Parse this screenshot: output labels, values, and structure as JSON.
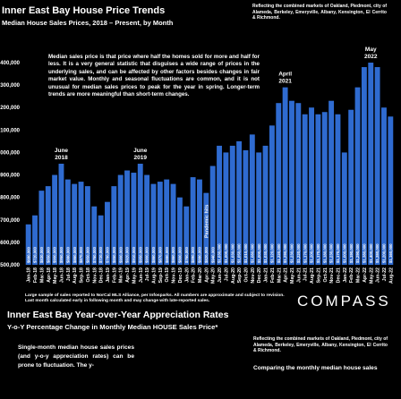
{
  "chart_data": {
    "type": "bar",
    "title": "Inner East Bay House Price Trends",
    "subtitle": "Median House Sales Prices, 2018 – Present, by Month",
    "note": "Reflecting the combined markets of Oakland, Piedmont, city of Alameda, Berkeley, Emeryville, Albany, Kensington, El Cerrito & Richmond.",
    "description": "Median sales price is that price where half the homes sold for more and half for less. It is a very general statistic that disguises a wide range of prices in the underlying sales, and can be affected by other factors besides changes in fair market value. Monthly and seasonal fluctuations are common, and it is not unusual for median sales prices to peak for the year in spring. Longer-term trends are more meaningful than short-term changes.",
    "footnote": "Large sample of sales reported to NorCal MLS Alliance, per Infosparks. All numbers are approximate and subject to revision. Last month calculated early in following month and may change with late-reported sales.",
    "logo": "COMPASS",
    "color": "#2f6bd0",
    "categories": [
      "Jan-18",
      "Feb-18",
      "Mar-18",
      "Apr-18",
      "May-18",
      "Jun-18",
      "Jul-18",
      "Aug-18",
      "Sep-18",
      "Oct-18",
      "Nov-18",
      "Dec-18",
      "Jan-19",
      "Feb-19",
      "Mar-19",
      "Apr-19",
      "May-19",
      "Jun-19",
      "Jul-19",
      "Aug-19",
      "Sep-19",
      "Oct-19",
      "Nov-19",
      "Dec-19",
      "Jan-20",
      "Feb-20",
      "Mar-20",
      "Apr-20",
      "May-20",
      "Jun-20",
      "Jul-20",
      "Aug-20",
      "Sep-20",
      "Oct-20",
      "Nov-20",
      "Dec-20",
      "Jan-21",
      "Feb-21",
      "Mar-21",
      "Apr-21",
      "May-21",
      "Jun-21",
      "Jul-21",
      "Aug-21",
      "Sep-21",
      "Oct-21",
      "Nov-21",
      "Dec-21",
      "Jan-22",
      "Feb-22",
      "Mar-22",
      "Apr-22",
      "May-22",
      "Jun-22",
      "Jul-22",
      "Aug-22"
    ],
    "values": [
      680000,
      720000,
      830000,
      850000,
      900000,
      950000,
      880000,
      860000,
      870000,
      850000,
      760000,
      720000,
      780000,
      850000,
      900000,
      920000,
      910000,
      950000,
      900000,
      860000,
      870000,
      880000,
      860000,
      800000,
      760000,
      890000,
      880000,
      820000,
      940000,
      1030000,
      1000000,
      1030000,
      1050000,
      1010000,
      1080000,
      1000000,
      1030000,
      1120000,
      1220000,
      1290000,
      1230000,
      1220000,
      1170000,
      1200000,
      1170000,
      1180000,
      1230000,
      1170000,
      1000000,
      1190000,
      1290000,
      1380000,
      1400000,
      1380000,
      1200000,
      1160000
    ],
    "value_labels": [
      "$680,000",
      "$720,000",
      "$830,000",
      "$850,000",
      "$900,000",
      "$950,000",
      "$880,000",
      "$860,000",
      "$870,000",
      "$850,000",
      "$760,000",
      "$720,000",
      "$780,000",
      "$850,000",
      "$900,000",
      "$920,000",
      "$910,000",
      "$950,000",
      "$900,000",
      "$860,000",
      "$870,000",
      "$880,000",
      "$860,000",
      "$800,000",
      "$760,000",
      "$890,000",
      "$880,000",
      "$820,000",
      "$940,000",
      "$1,030,000",
      "$1,000,000",
      "$1,030,000",
      "$1,050,000",
      "$1,010,000",
      "$1,080,000",
      "$1,000,000",
      "$1,030,000",
      "$1,120,000",
      "$1,220,000",
      "$1,290,000",
      "$1,230,000",
      "$1,220,000",
      "$1,170,000",
      "$1,200,000",
      "$1,170,000",
      "$1,180,000",
      "$1,230,000",
      "$1,170,000",
      "$1,000,000",
      "$1,190,000",
      "$1,290,000",
      "$1,380,000",
      "$1,400,000",
      "$1,380,000",
      "$1,200,000",
      "$1,160,000"
    ],
    "ylim": [
      500000,
      1450000
    ],
    "yticks": [
      {
        "value": 500000,
        "label": "$500,000"
      },
      {
        "value": 600000,
        "label": "$600,000"
      },
      {
        "value": 700000,
        "label": "$700,000"
      },
      {
        "value": 800000,
        "label": "$800,000"
      },
      {
        "value": 900000,
        "label": "$900,000"
      },
      {
        "value": 1000000,
        "label": "$1,000,000"
      },
      {
        "value": 1100000,
        "label": "$1,100,000"
      },
      {
        "value": 1200000,
        "label": "$1,200,000"
      },
      {
        "value": 1300000,
        "label": "$1,300,000"
      },
      {
        "value": 1400000,
        "label": "$1,400,000"
      }
    ],
    "annotations": [
      {
        "lines": [
          "June",
          "2018"
        ],
        "category": "Jun-18"
      },
      {
        "lines": [
          "June",
          "2019"
        ],
        "category": "Jun-19"
      },
      {
        "lines": [
          "April",
          "2021"
        ],
        "category": "Apr-21"
      },
      {
        "lines": [
          "May",
          "2022"
        ],
        "category": "May-22"
      }
    ],
    "inbar_annotation": {
      "text": "Pandemic hits",
      "category": "Apr-20"
    }
  },
  "section2": {
    "title": "Inner East Bay Year-over-Year Appreciation Rates",
    "subtitle": "Y-o-Y Percentage Change in Monthly Median HOUSE Sales Price*",
    "left_text": "Single-month median house sales prices (and y-o-y appreciation rates) can be prone to fluctuation. The y-",
    "note": "Reflecting the combined markets of Oakland, Piedmont, city of Alameda, Berkeley, Emeryville, Albany, Kensington, El Cerrito & Richmond.",
    "right_text": "Comparing the monthly median house sales"
  }
}
